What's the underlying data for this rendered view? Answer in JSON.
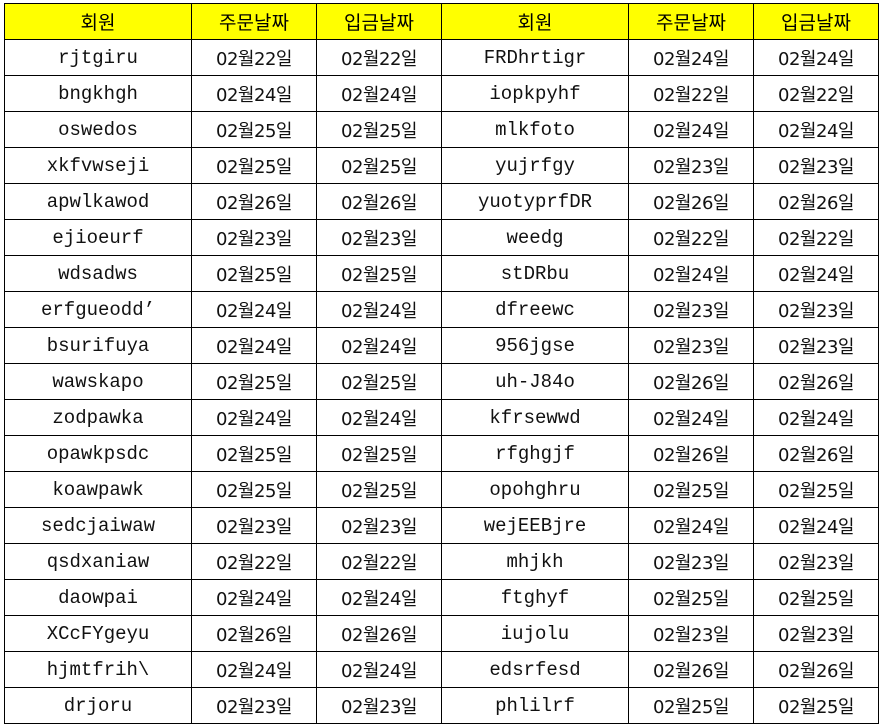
{
  "colors": {
    "header_bg": "#ffff00",
    "border": "#000000"
  },
  "headers": [
    "회원",
    "주문날짜",
    "입금날짜",
    "회원",
    "주문날짜",
    "입금날짜"
  ],
  "rows": [
    [
      "rjtgiru",
      "02월22일",
      "02월22일",
      "FRDhrtigr",
      "02월24일",
      "02월24일"
    ],
    [
      "bngkhgh",
      "02월24일",
      "02월24일",
      "iopkpyhf",
      "02월22일",
      "02월22일"
    ],
    [
      "oswedos",
      "02월25일",
      "02월25일",
      "mlkfoto",
      "02월24일",
      "02월24일"
    ],
    [
      "xkfvwseji",
      "02월25일",
      "02월25일",
      "yujrfgy",
      "02월23일",
      "02월23일"
    ],
    [
      "apwlkawod",
      "02월26일",
      "02월26일",
      "yuotyprfDR",
      "02월26일",
      "02월26일"
    ],
    [
      "ejioeurf",
      "02월23일",
      "02월23일",
      "weedg",
      "02월22일",
      "02월22일"
    ],
    [
      "wdsadws",
      "02월25일",
      "02월25일",
      "stDRbu",
      "02월24일",
      "02월24일"
    ],
    [
      "erfgueodd’",
      "02월24일",
      "02월24일",
      "dfreewc",
      "02월23일",
      "02월23일"
    ],
    [
      "bsurifuya",
      "02월24일",
      "02월24일",
      "956jgse",
      "02월23일",
      "02월23일"
    ],
    [
      "wawskapo",
      "02월25일",
      "02월25일",
      "uh-J84o",
      "02월26일",
      "02월26일"
    ],
    [
      "zodpawka",
      "02월24일",
      "02월24일",
      "kfrsewwd",
      "02월24일",
      "02월24일"
    ],
    [
      "opawkpsdc",
      "02월25일",
      "02월25일",
      "rfghgjf",
      "02월26일",
      "02월26일"
    ],
    [
      "koawpawk",
      "02월25일",
      "02월25일",
      "opohghru",
      "02월25일",
      "02월25일"
    ],
    [
      "sedcjaiwaw",
      "02월23일",
      "02월23일",
      "wejEEBjre",
      "02월24일",
      "02월24일"
    ],
    [
      "qsdxaniaw",
      "02월22일",
      "02월22일",
      "mhjkh",
      "02월23일",
      "02월23일"
    ],
    [
      "daowpai",
      "02월24일",
      "02월24일",
      "ftghyf",
      "02월25일",
      "02월25일"
    ],
    [
      "XCcFYgeyu",
      "02월26일",
      "02월26일",
      "iujolu",
      "02월23일",
      "02월23일"
    ],
    [
      "hjmtfrih\\",
      "02월24일",
      "02월24일",
      "edsrfesd",
      "02월26일",
      "02월26일"
    ],
    [
      "drjoru",
      "02월23일",
      "02월23일",
      "phlilrf",
      "02월25일",
      "02월25일"
    ]
  ]
}
